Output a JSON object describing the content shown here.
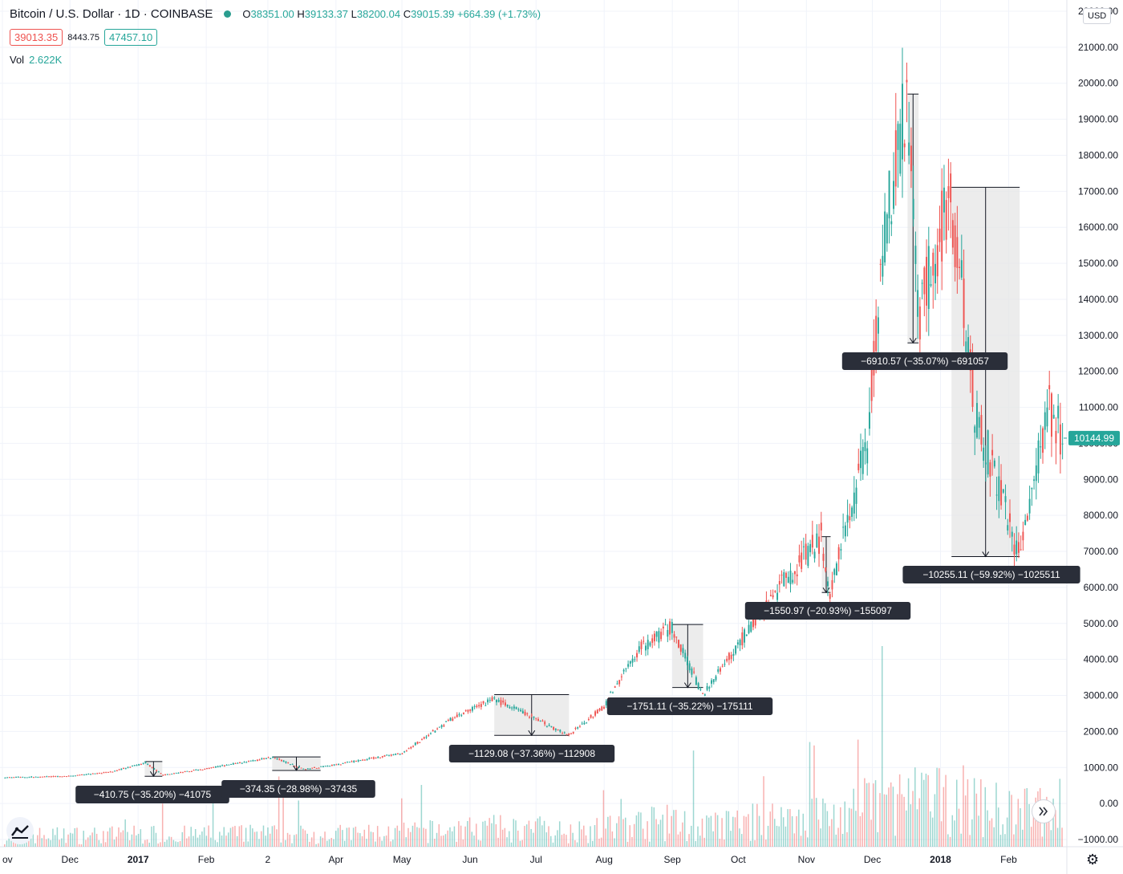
{
  "header": {
    "title": "Bitcoin / U.S. Dollar · 1D · COINBASE",
    "ohlc": {
      "o_label": "O",
      "o": "38351.00",
      "h_label": "H",
      "h": "39133.37",
      "l_label": "L",
      "l": "38200.04",
      "c_label": "C",
      "c": "39015.39",
      "change": "+664.39 (+1.73%)"
    },
    "bid": "39013.35",
    "spread": "8443.75",
    "ask": "47457.10",
    "vol_label": "Vol",
    "vol_value": "2.622K"
  },
  "currency_button": "USD",
  "icons": {
    "logo": "tradingview-logo-icon",
    "scroll": "scroll-to-realtime-icon",
    "settings": "gear-icon"
  },
  "colors": {
    "up": "#26a69a",
    "down": "#ef5350",
    "measure_box": "#e6e6e6",
    "label_bg": "#2a2e39",
    "price_tag": "#26a69a"
  },
  "chart_data": {
    "type": "candlestick",
    "title": "Bitcoin / U.S. Dollar · 1D · COINBASE",
    "ylim": [
      -1000,
      22000
    ],
    "y_ticks": [
      "22000.00",
      "21000.00",
      "20000.00",
      "19000.00",
      "18000.00",
      "17000.00",
      "16000.00",
      "15000.00",
      "14000.00",
      "13000.00",
      "12000.00",
      "11000.00",
      "10000.00",
      "9000.00",
      "8000.00",
      "7000.00",
      "6000.00",
      "5000.00",
      "4000.00",
      "3000.00",
      "2000.00",
      "1000.00",
      "0.00",
      "−1000.00"
    ],
    "x_ticks": [
      "ov",
      "Dec",
      "2017",
      "Feb",
      "2",
      "Apr",
      "May",
      "Jun",
      "Jul",
      "Aug",
      "Sep",
      "Oct",
      "Nov",
      "Dec",
      "2018",
      "Feb"
    ],
    "last_price": "10144.99",
    "price_path": [
      [
        "2016-11-01",
        720
      ],
      [
        "2016-12-01",
        760
      ],
      [
        "2016-12-20",
        880
      ],
      [
        "2017-01-04",
        1130
      ],
      [
        "2017-01-12",
        790
      ],
      [
        "2017-02-01",
        970
      ],
      [
        "2017-03-03",
        1280
      ],
      [
        "2017-03-18",
        950
      ],
      [
        "2017-04-01",
        1080
      ],
      [
        "2017-05-01",
        1400
      ],
      [
        "2017-05-25",
        2400
      ],
      [
        "2017-06-12",
        2900
      ],
      [
        "2017-07-16",
        1900
      ],
      [
        "2017-08-01",
        2700
      ],
      [
        "2017-08-17",
        4300
      ],
      [
        "2017-09-01",
        4900
      ],
      [
        "2017-09-15",
        3000
      ],
      [
        "2017-10-01",
        4400
      ],
      [
        "2017-10-20",
        6000
      ],
      [
        "2017-11-08",
        7400
      ],
      [
        "2017-11-12",
        5900
      ],
      [
        "2017-11-29",
        10000
      ],
      [
        "2017-12-07",
        16000
      ],
      [
        "2017-12-17",
        19700
      ],
      [
        "2017-12-22",
        13500
      ],
      [
        "2018-01-06",
        17000
      ],
      [
        "2018-01-17",
        11000
      ],
      [
        "2018-02-06",
        6900
      ],
      [
        "2018-02-20",
        11000
      ],
      [
        "2018-02-26",
        10145
      ]
    ],
    "measurements": [
      {
        "label": "−410.75 (−35.20%) −41075",
        "from": [
          "2017-01-04",
          1166
        ],
        "to": [
          "2017-01-12",
          756
        ]
      },
      {
        "label": "−374.35 (−28.98%) −37435",
        "from": [
          "2017-03-03",
          1292
        ],
        "to": [
          "2017-03-25",
          918
        ]
      },
      {
        "label": "−1129.08 (−37.36%) −112908",
        "from": [
          "2017-06-12",
          3022
        ],
        "to": [
          "2017-07-16",
          1893
        ]
      },
      {
        "label": "−1751.11 (−35.22%) −175111",
        "from": [
          "2017-09-01",
          4971
        ],
        "to": [
          "2017-09-15",
          3220
        ]
      },
      {
        "label": "−1550.97 (−20.93%) −155097",
        "from": [
          "2017-11-08",
          7410
        ],
        "to": [
          "2017-11-12",
          5859
        ]
      },
      {
        "label": "−6910.57 (−35.07%) −691057",
        "from": [
          "2017-12-17",
          19700
        ],
        "to": [
          "2017-12-22",
          12790
        ]
      },
      {
        "label": "−10255.11 (−59.92%) −1025511",
        "from": [
          "2018-01-06",
          17112
        ],
        "to": [
          "2018-02-06",
          6857
        ]
      }
    ]
  }
}
